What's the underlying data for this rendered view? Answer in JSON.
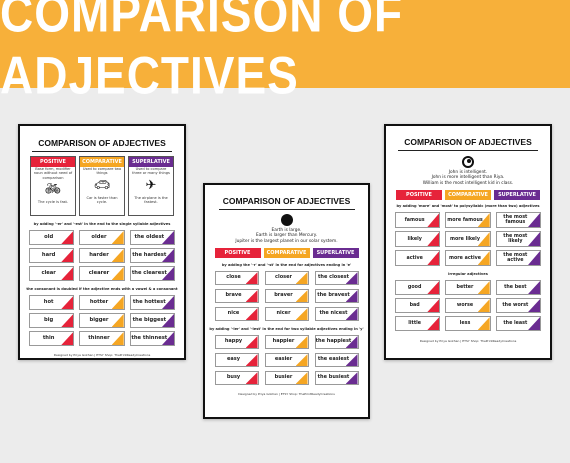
{
  "banner": {
    "title": "COMPARISON  OF ADJECTIVES"
  },
  "poster_title": "COMPARISON OF ADJECTIVES",
  "headers": {
    "positive": "POSITIVE",
    "comparative": "COMPARATIVE",
    "superlative": "SUPERLATIVE"
  },
  "footer": "Designed by Priya Gokhan | ETSY Shop: ThePrintReadyCreations",
  "left": {
    "boxes": [
      {
        "text": "Base form, modifier noun without need of comparison",
        "example": "The cycle is fast.",
        "icon": "bicycle-icon"
      },
      {
        "text": "Used to compare two things",
        "example": "Car is faster than cycle.",
        "icon": "car-icon"
      },
      {
        "text": "Used to compare three or many things",
        "example": "The airplane is the fastest.",
        "icon": "airplane-icon"
      }
    ],
    "note1": "by adding '-er' and '-est' in the end to the single syllable adjectives",
    "rows1": [
      [
        "old",
        "older",
        "the oldest"
      ],
      [
        "hard",
        "harder",
        "the hardest"
      ],
      [
        "clear",
        "clearer",
        "the clearest"
      ]
    ],
    "note2": "the consonant is doubled if the adjective ends with a vowel & a consonant",
    "rows2": [
      [
        "hot",
        "hotter",
        "the hottest"
      ],
      [
        "big",
        "bigger",
        "the biggest"
      ],
      [
        "thin",
        "thinner",
        "the thinnest"
      ]
    ]
  },
  "center": {
    "sentences": [
      "Earth is large.",
      "Earth is larger than Mercury.",
      "Jupiter is the largest planet in our solar system."
    ],
    "note1": "by adding the '-r' and '-st' in the end for adjectives ending in 'e'",
    "rows1": [
      [
        "close",
        "closer",
        "the closest"
      ],
      [
        "brave",
        "braver",
        "the bravest"
      ],
      [
        "nice",
        "nicer",
        "the nicest"
      ]
    ],
    "note2": "by adding '-ier' and '-iest' in the end for two syllable adjectives ending in 'y'",
    "rows2": [
      [
        "happy",
        "happier",
        "the happiest"
      ],
      [
        "easy",
        "easier",
        "the easiest"
      ],
      [
        "busy",
        "busier",
        "the busiest"
      ]
    ]
  },
  "right": {
    "sentences": [
      "John is intelligent.",
      "John is more intelligent than Riya.",
      "William is the most intelligent kid in class."
    ],
    "note1": "by adding 'more' and 'most' to polysyllabic (more than two) adjectives",
    "rows1": [
      [
        "famous",
        "more famous",
        "the most famous"
      ],
      [
        "likely",
        "more likely",
        "the most likely"
      ],
      [
        "active",
        "more active",
        "the most active"
      ]
    ],
    "note2": "irregular adjectives",
    "rows2": [
      [
        "good",
        "better",
        "the best"
      ],
      [
        "bad",
        "worse",
        "the worst"
      ],
      [
        "little",
        "less",
        "the least"
      ]
    ]
  }
}
